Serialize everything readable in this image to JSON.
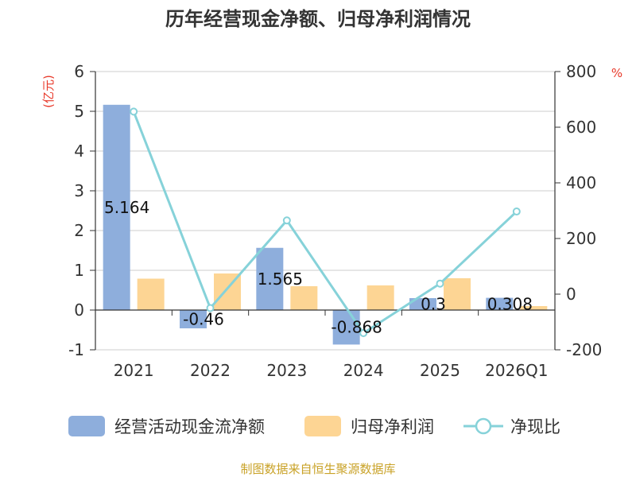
{
  "title": "历年经营现金净额、归母净利润情况",
  "source": "制图数据来自恒生聚源数据库",
  "colors": {
    "cash_flow": "#8eaedc",
    "net_profit": "#fdd594",
    "ratio": "#86d2d9",
    "unit": "#e8392a",
    "source": "#c9a227"
  },
  "chart_data": {
    "type": "bar",
    "categories": [
      "2021",
      "2022",
      "2023",
      "2024",
      "2025",
      "2026Q1"
    ],
    "y_left": {
      "unit": "(亿元)",
      "ylim": [
        -1,
        6
      ],
      "ticks": [
        6,
        5,
        4,
        3,
        2,
        1,
        0,
        -1
      ]
    },
    "y_right": {
      "unit": "%",
      "ylim": [
        -200,
        800
      ],
      "ticks": [
        800,
        600,
        400,
        200,
        0,
        -200
      ]
    },
    "grid": true,
    "legend_position": "bottom",
    "series": [
      {
        "name": "经营活动现金流净额",
        "kind": "bar",
        "axis": "left",
        "values": [
          5.164,
          -0.46,
          1.565,
          -0.868,
          0.3,
          0.308
        ],
        "labels": [
          "5.164",
          "-0.46",
          "1.565",
          "-0.868",
          "0.3",
          "0.308"
        ]
      },
      {
        "name": "归母净利润",
        "kind": "bar",
        "axis": "left",
        "values": [
          0.79,
          0.92,
          0.6,
          0.62,
          0.8,
          0.1
        ]
      },
      {
        "name": "净现比",
        "kind": "line",
        "axis": "right",
        "values": [
          656,
          -50,
          265,
          -140,
          38,
          297
        ]
      }
    ]
  }
}
